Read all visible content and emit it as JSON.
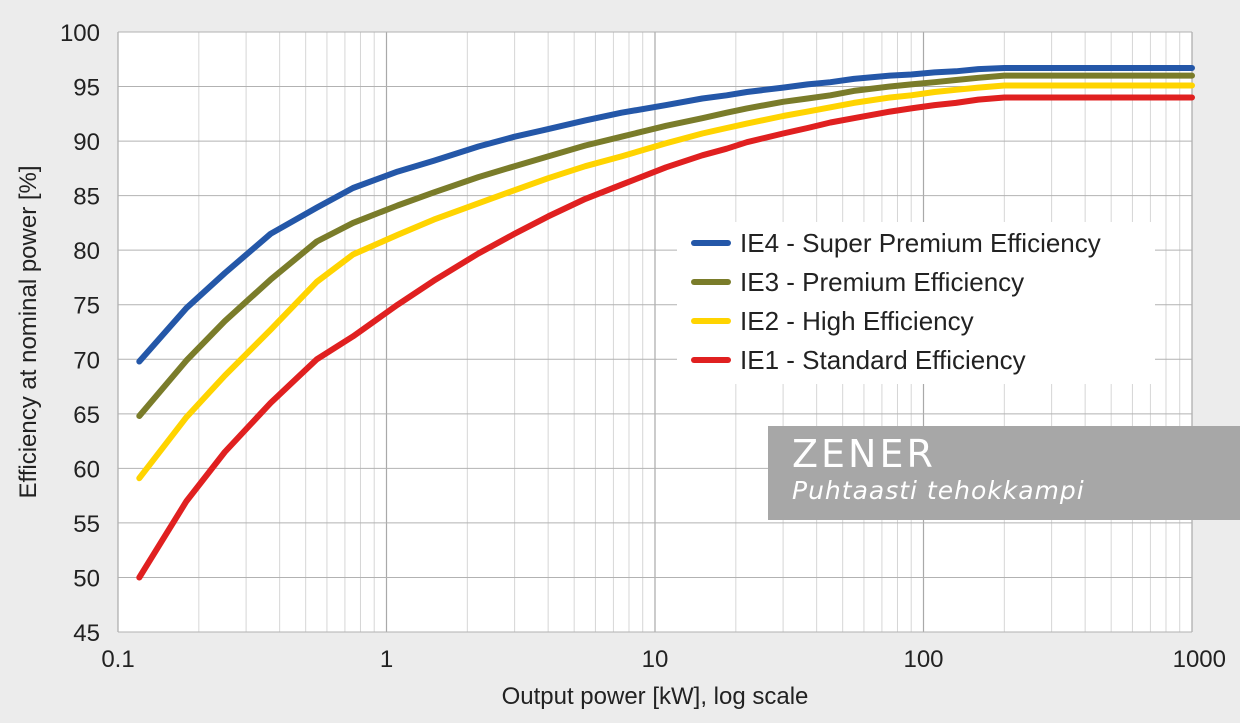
{
  "chart_data": {
    "type": "line",
    "xscale": "log",
    "xlim": [
      0.1,
      1000
    ],
    "ylim": [
      45,
      100
    ],
    "x_ticks": [
      {
        "value": 0.1,
        "label": "0.1"
      },
      {
        "value": 1,
        "label": "1"
      },
      {
        "value": 10,
        "label": "10"
      },
      {
        "value": 100,
        "label": "100"
      },
      {
        "value": 1000,
        "label": "1000"
      }
    ],
    "y_ticks": [
      {
        "value": 45,
        "label": "45"
      },
      {
        "value": 50,
        "label": "50"
      },
      {
        "value": 55,
        "label": "55"
      },
      {
        "value": 60,
        "label": "60"
      },
      {
        "value": 65,
        "label": "65"
      },
      {
        "value": 70,
        "label": "70"
      },
      {
        "value": 75,
        "label": "75"
      },
      {
        "value": 80,
        "label": "80"
      },
      {
        "value": 85,
        "label": "85"
      },
      {
        "value": 90,
        "label": "90"
      },
      {
        "value": 95,
        "label": "95"
      },
      {
        "value": 100,
        "label": "100"
      }
    ],
    "xlabel": "Output power [kW], log scale",
    "ylabel": "Efficiency at nominal power [%]",
    "grid": true,
    "legend_position": "middle-right",
    "x": [
      0.12,
      0.18,
      0.25,
      0.37,
      0.55,
      0.75,
      1.1,
      1.5,
      2.2,
      3,
      4,
      5.5,
      7.5,
      11,
      15,
      18.5,
      22,
      30,
      37,
      45,
      55,
      75,
      90,
      110,
      132,
      160,
      200,
      1000
    ],
    "series": [
      {
        "name": "IE4 - Super Premium Efficiency",
        "color": "#2457a8",
        "values": [
          69.8,
          74.7,
          77.9,
          81.5,
          83.9,
          85.7,
          87.2,
          88.2,
          89.5,
          90.4,
          91.1,
          91.9,
          92.6,
          93.3,
          93.9,
          94.2,
          94.5,
          94.9,
          95.2,
          95.4,
          95.7,
          96.0,
          96.1,
          96.3,
          96.4,
          96.6,
          96.7,
          96.7
        ]
      },
      {
        "name": "IE3 - Premium Efficiency",
        "color": "#7a7c2a",
        "values": [
          64.8,
          69.9,
          73.5,
          77.3,
          80.8,
          82.5,
          84.1,
          85.3,
          86.7,
          87.7,
          88.6,
          89.6,
          90.4,
          91.4,
          92.1,
          92.6,
          93.0,
          93.6,
          93.9,
          94.2,
          94.6,
          95.0,
          95.2,
          95.4,
          95.6,
          95.8,
          96.0,
          96.0
        ]
      },
      {
        "name": "IE2 - High Efficiency",
        "color": "#ffd400",
        "values": [
          59.1,
          64.7,
          68.5,
          72.7,
          77.1,
          79.6,
          81.4,
          82.8,
          84.3,
          85.5,
          86.6,
          87.7,
          88.6,
          89.8,
          90.7,
          91.2,
          91.6,
          92.3,
          92.7,
          93.1,
          93.5,
          94.0,
          94.2,
          94.5,
          94.7,
          94.9,
          95.1,
          95.1
        ]
      },
      {
        "name": "IE1 - Standard Efficiency",
        "color": "#e02020",
        "values": [
          50.0,
          57.0,
          61.5,
          66.0,
          70.0,
          72.1,
          75.0,
          77.2,
          79.7,
          81.5,
          83.1,
          84.7,
          86.0,
          87.6,
          88.7,
          89.3,
          89.9,
          90.7,
          91.2,
          91.7,
          92.1,
          92.7,
          93.0,
          93.3,
          93.5,
          93.8,
          94.0,
          94.0
        ]
      }
    ]
  },
  "branding": {
    "name": "ZENER",
    "tagline": "Puhtaasti tehokkampi"
  }
}
